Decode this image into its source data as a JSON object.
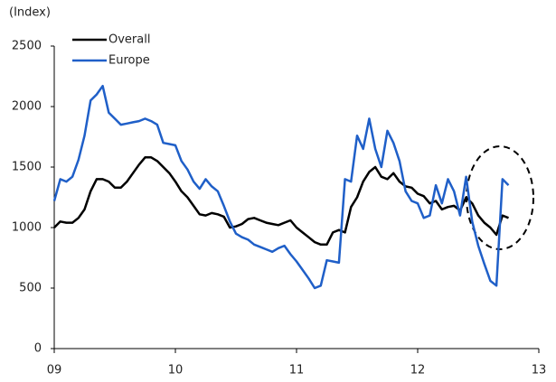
{
  "chart_data": {
    "type": "line",
    "y_label": "(Index)",
    "x": [
      9.0,
      9.05,
      9.1,
      9.15,
      9.2,
      9.25,
      9.3,
      9.35,
      9.4,
      9.45,
      9.5,
      9.55,
      9.6,
      9.65,
      9.7,
      9.75,
      9.8,
      9.85,
      9.9,
      9.95,
      10.0,
      10.05,
      10.1,
      10.15,
      10.2,
      10.25,
      10.3,
      10.35,
      10.4,
      10.45,
      10.5,
      10.55,
      10.6,
      10.65,
      10.7,
      10.75,
      10.8,
      10.85,
      10.9,
      10.95,
      11.0,
      11.05,
      11.1,
      11.15,
      11.2,
      11.25,
      11.3,
      11.35,
      11.4,
      11.45,
      11.5,
      11.55,
      11.6,
      11.65,
      11.7,
      11.75,
      11.8,
      11.85,
      11.9,
      11.95,
      12.0,
      12.05,
      12.1,
      12.15,
      12.2,
      12.25,
      12.3,
      12.35,
      12.4,
      12.45,
      12.5,
      12.55,
      12.6,
      12.65,
      12.7,
      12.75
    ],
    "series": [
      {
        "name": "Overall",
        "color": "#000000",
        "values": [
          1000,
          1050,
          1040,
          1040,
          1080,
          1150,
          1300,
          1400,
          1400,
          1380,
          1330,
          1330,
          1380,
          1450,
          1520,
          1580,
          1580,
          1550,
          1500,
          1450,
          1380,
          1300,
          1250,
          1180,
          1110,
          1100,
          1120,
          1110,
          1090,
          1000,
          1010,
          1030,
          1070,
          1080,
          1060,
          1040,
          1030,
          1020,
          1040,
          1060,
          1000,
          960,
          920,
          880,
          860,
          860,
          960,
          980,
          960,
          1170,
          1250,
          1380,
          1460,
          1500,
          1420,
          1400,
          1450,
          1380,
          1340,
          1330,
          1280,
          1260,
          1200,
          1220,
          1150,
          1170,
          1180,
          1140,
          1250,
          1200,
          1100,
          1040,
          1000,
          940,
          1100,
          1080
        ]
      },
      {
        "name": "Europe",
        "color": "#1f5fc8",
        "values": [
          1220,
          1400,
          1380,
          1420,
          1560,
          1760,
          2050,
          2100,
          2170,
          1950,
          1900,
          1850,
          1860,
          1870,
          1880,
          1900,
          1880,
          1850,
          1700,
          1690,
          1680,
          1550,
          1480,
          1380,
          1320,
          1400,
          1340,
          1300,
          1180,
          1050,
          950,
          920,
          900,
          860,
          840,
          820,
          800,
          830,
          850,
          780,
          720,
          650,
          580,
          500,
          520,
          730,
          720,
          710,
          1400,
          1380,
          1760,
          1650,
          1900,
          1650,
          1500,
          1800,
          1700,
          1550,
          1300,
          1220,
          1200,
          1080,
          1100,
          1350,
          1200,
          1400,
          1300,
          1100,
          1420,
          1050,
          850,
          700,
          560,
          520,
          1400,
          1350
        ]
      }
    ],
    "xlim": [
      9,
      13
    ],
    "xticks": [
      {
        "value": 9,
        "label": "09"
      },
      10,
      11,
      12,
      13
    ],
    "ylim": [
      0,
      2500
    ],
    "yticks": [
      0,
      500,
      1000,
      1500,
      2000,
      2500
    ],
    "grid": false,
    "legend": "top-left"
  }
}
